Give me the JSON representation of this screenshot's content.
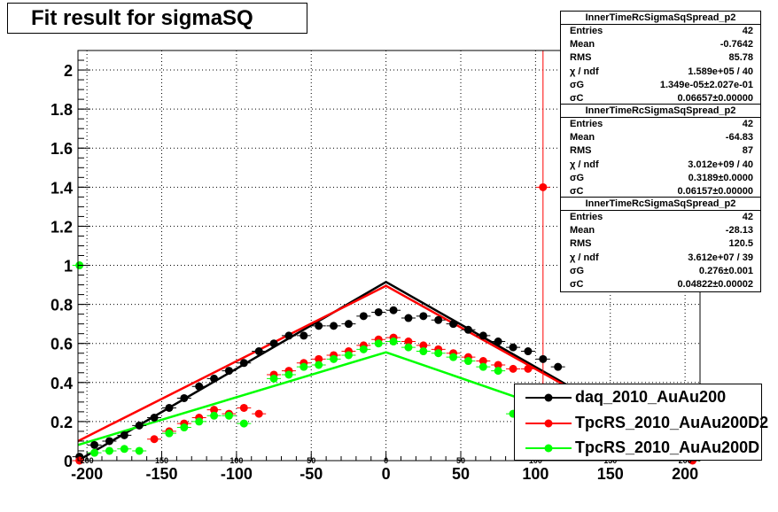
{
  "title": "Fit result for sigmaSQ",
  "stats_boxes": [
    {
      "name": "InnerTimeRcSigmaSqSpread_p2",
      "rows": [
        {
          "k": "Entries",
          "v": "42"
        },
        {
          "k": "Mean",
          "v": "-0.7642"
        },
        {
          "k": "RMS",
          "v": "85.78"
        },
        {
          "k": "χ / ndf",
          "v": "1.589e+05 / 40"
        },
        {
          "k": "σG",
          "v": "1.349e-05±2.027e-01"
        },
        {
          "k": "σC",
          "v": "0.06657±0.00000"
        }
      ]
    },
    {
      "name": "InnerTimeRcSigmaSqSpread_p2",
      "rows": [
        {
          "k": "Entries",
          "v": "42"
        },
        {
          "k": "Mean",
          "v": "-64.83"
        },
        {
          "k": "RMS",
          "v": "87"
        },
        {
          "k": "χ / ndf",
          "v": "3.012e+09 / 40"
        },
        {
          "k": "σG",
          "v": "0.3189±0.0000"
        },
        {
          "k": "σC",
          "v": "0.06157±0.00000"
        }
      ]
    },
    {
      "name": "InnerTimeRcSigmaSqSpread_p2",
      "rows": [
        {
          "k": "Entries",
          "v": "42"
        },
        {
          "k": "Mean",
          "v": "-28.13"
        },
        {
          "k": "RMS",
          "v": "120.5"
        },
        {
          "k": "χ / ndf",
          "v": "3.612e+07 / 39"
        },
        {
          "k": "σG",
          "v": "0.276±0.001"
        },
        {
          "k": "σC",
          "v": "0.04822±0.00002"
        }
      ]
    }
  ],
  "legend": [
    {
      "label": "daq_2010_AuAu200",
      "color": "#000000"
    },
    {
      "label": "TpcRS_2010_AuAu200D2",
      "color": "#ff0000"
    },
    {
      "label": "TpcRS_2010_AuAu200D",
      "color": "#00ff00"
    }
  ],
  "chart_data": {
    "type": "scatter",
    "title": "Fit result for sigmaSQ",
    "xlim": [
      -206,
      210
    ],
    "ylim": [
      0,
      2.1
    ],
    "x_ticks": [
      -200,
      -150,
      -100,
      -50,
      0,
      50,
      100,
      150,
      200
    ],
    "y_ticks": [
      0,
      0.2,
      0.4,
      0.6,
      0.8,
      1,
      1.2,
      1.4,
      1.6,
      1.8,
      2
    ],
    "x_ticks_inner": [
      "200",
      "150",
      "100",
      "50",
      "0",
      "50",
      "100",
      "150",
      "200"
    ],
    "grid": true,
    "series": [
      {
        "name": "daq_2010_AuAu200",
        "color": "#000000",
        "points": [
          [
            -205,
            0.02
          ],
          [
            -195,
            0.08
          ],
          [
            -185,
            0.1
          ],
          [
            -175,
            0.13
          ],
          [
            -165,
            0.18
          ],
          [
            -155,
            0.22
          ],
          [
            -145,
            0.27
          ],
          [
            -135,
            0.32
          ],
          [
            -125,
            0.38
          ],
          [
            -115,
            0.42
          ],
          [
            -105,
            0.46
          ],
          [
            -95,
            0.5
          ],
          [
            -85,
            0.56
          ],
          [
            -75,
            0.6
          ],
          [
            -65,
            0.64
          ],
          [
            -55,
            0.64
          ],
          [
            -45,
            0.69
          ],
          [
            -35,
            0.69
          ],
          [
            -25,
            0.7
          ],
          [
            -15,
            0.74
          ],
          [
            -5,
            0.76
          ],
          [
            5,
            0.77
          ],
          [
            15,
            0.73
          ],
          [
            25,
            0.74
          ],
          [
            35,
            0.72
          ],
          [
            45,
            0.7
          ],
          [
            55,
            0.67
          ],
          [
            65,
            0.64
          ],
          [
            75,
            0.61
          ],
          [
            85,
            0.58
          ],
          [
            95,
            0.56
          ],
          [
            105,
            0.52
          ],
          [
            115,
            0.48
          ]
        ],
        "fit": [
          [
            -206,
            0.0
          ],
          [
            0,
            0.915
          ],
          [
            210,
            0.0
          ]
        ]
      },
      {
        "name": "TpcRS_2010_AuAu200D2",
        "color": "#ff0000",
        "points": [
          [
            -205,
            0.0
          ],
          [
            -155,
            0.11
          ],
          [
            -145,
            0.15
          ],
          [
            -135,
            0.19
          ],
          [
            -125,
            0.22
          ],
          [
            -115,
            0.26
          ],
          [
            -105,
            0.24
          ],
          [
            -95,
            0.27
          ],
          [
            -85,
            0.24
          ],
          [
            -75,
            0.44
          ],
          [
            -65,
            0.46
          ],
          [
            -55,
            0.5
          ],
          [
            -45,
            0.52
          ],
          [
            -35,
            0.54
          ],
          [
            -25,
            0.56
          ],
          [
            -15,
            0.59
          ],
          [
            -5,
            0.62
          ],
          [
            5,
            0.63
          ],
          [
            15,
            0.61
          ],
          [
            25,
            0.59
          ],
          [
            35,
            0.57
          ],
          [
            45,
            0.55
          ],
          [
            55,
            0.53
          ],
          [
            65,
            0.51
          ],
          [
            75,
            0.49
          ],
          [
            85,
            0.47
          ],
          [
            95,
            0.47
          ],
          [
            105,
            1.4
          ],
          [
            205,
            0.0
          ]
        ],
        "fit": [
          [
            -206,
            0.1
          ],
          [
            0,
            0.895
          ],
          [
            210,
            0.0
          ]
        ],
        "vline_x": 105
      },
      {
        "name": "TpcRS_2010_AuAu200D",
        "color": "#00ff00",
        "points": [
          [
            -205,
            1.0
          ],
          [
            -195,
            0.04
          ],
          [
            -185,
            0.05
          ],
          [
            -175,
            0.06
          ],
          [
            -165,
            0.05
          ],
          [
            -145,
            0.14
          ],
          [
            -135,
            0.17
          ],
          [
            -125,
            0.2
          ],
          [
            -115,
            0.23
          ],
          [
            -105,
            0.23
          ],
          [
            -95,
            0.19
          ],
          [
            -75,
            0.42
          ],
          [
            -65,
            0.44
          ],
          [
            -55,
            0.48
          ],
          [
            -45,
            0.49
          ],
          [
            -35,
            0.52
          ],
          [
            -25,
            0.54
          ],
          [
            -15,
            0.57
          ],
          [
            -5,
            0.6
          ],
          [
            5,
            0.61
          ],
          [
            15,
            0.58
          ],
          [
            25,
            0.56
          ],
          [
            35,
            0.55
          ],
          [
            45,
            0.53
          ],
          [
            55,
            0.51
          ],
          [
            65,
            0.48
          ],
          [
            75,
            0.46
          ],
          [
            85,
            0.24
          ]
        ],
        "fit": [
          [
            -206,
            0.08
          ],
          [
            0,
            0.555
          ],
          [
            210,
            0.0
          ]
        ]
      }
    ]
  }
}
